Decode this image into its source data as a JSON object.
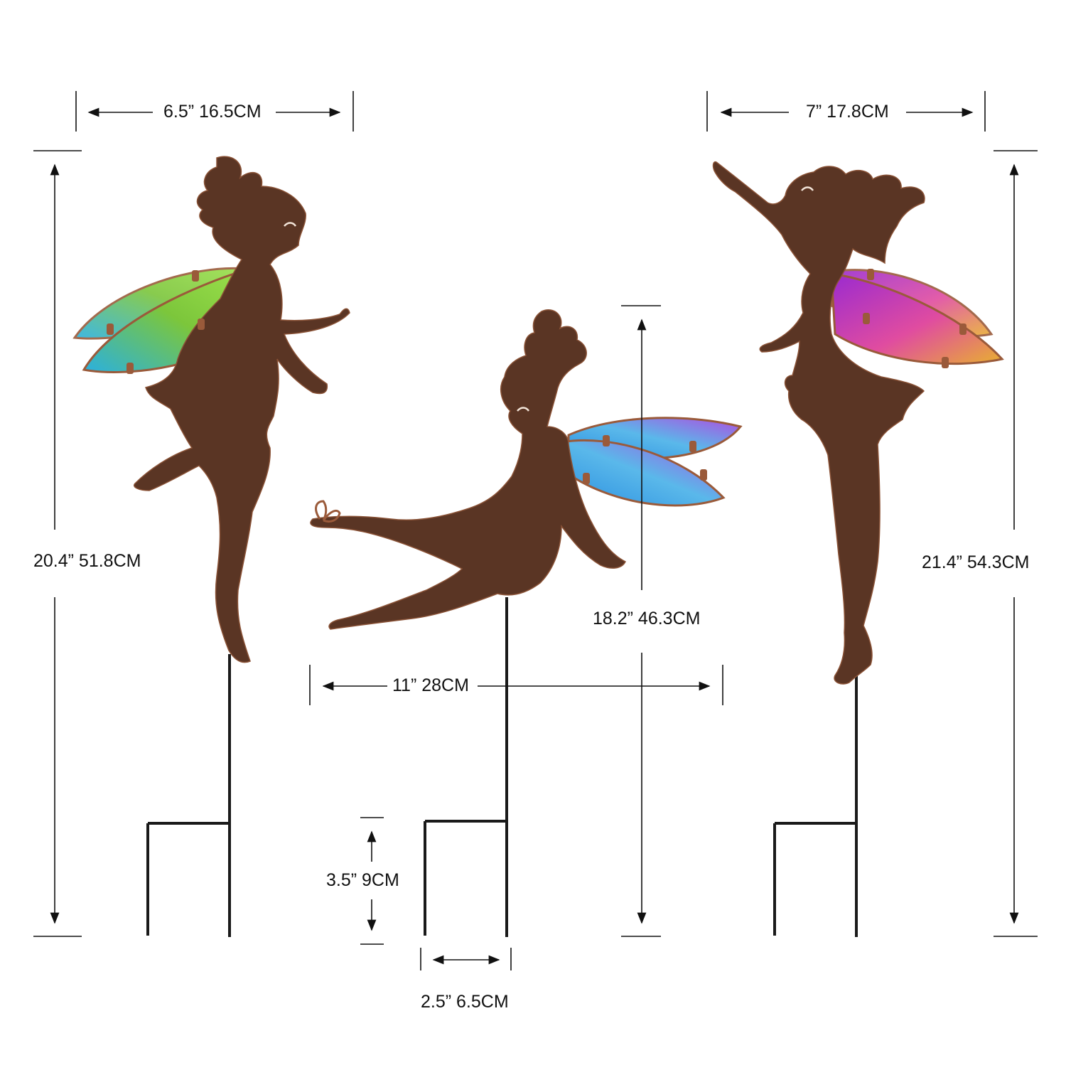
{
  "colors": {
    "rust": "#5a3524",
    "rust_light": "#8a5236",
    "stake": "#1a1a1a",
    "wire": "#9a5a3a",
    "line": "#111111"
  },
  "fairies": [
    {
      "pose": "standing-kick",
      "wing_colors": [
        "#2ab0e0",
        "#7cc63b",
        "#9be04b"
      ],
      "width_label": "6.5” 16.5CM",
      "height_label": "20.4” 51.8CM"
    },
    {
      "pose": "sitting-with-butterfly",
      "wing_colors": [
        "#2a8fe0",
        "#5ab8ea",
        "#b04ce0"
      ],
      "width_label": "11” 28CM",
      "height_label": "18.2” 46.3CM"
    },
    {
      "pose": "reaching-up",
      "wing_colors": [
        "#9a2ad0",
        "#e04ca0",
        "#e8b030"
      ],
      "width_label": "7” 17.8CM",
      "height_label": "21.4” 54.3CM"
    }
  ],
  "stake": {
    "depth_label": "3.5” 9CM",
    "spread_label": "2.5” 6.5CM"
  }
}
